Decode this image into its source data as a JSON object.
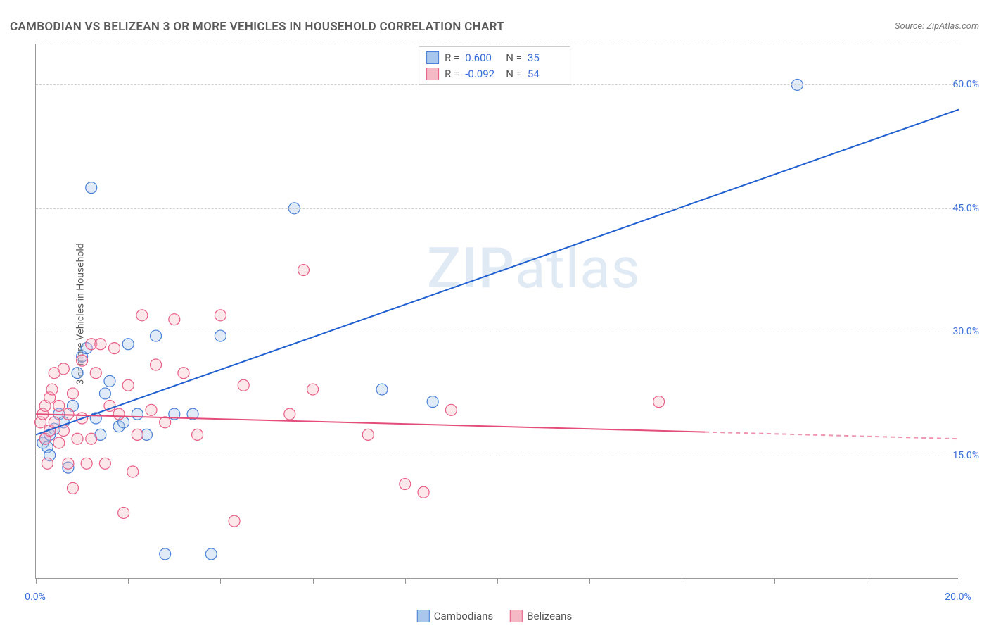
{
  "title": "CAMBODIAN VS BELIZEAN 3 OR MORE VEHICLES IN HOUSEHOLD CORRELATION CHART",
  "source_label": "Source:",
  "source_value": "ZipAtlas.com",
  "ylabel": "3 or more Vehicles in Household",
  "watermark": "ZIPatlas",
  "chart": {
    "type": "scatter-correlation",
    "xlim": [
      0.0,
      20.0
    ],
    "ylim": [
      0.0,
      65.0
    ],
    "x_tick_step": 2.0,
    "x_tick_labels_shown": [
      0.0,
      20.0
    ],
    "y_grid_values": [
      15.0,
      30.0,
      45.0,
      60.0
    ],
    "y_tick_labels": [
      "15.0%",
      "30.0%",
      "45.0%",
      "60.0%"
    ],
    "x_tick_labels": [
      "0.0%",
      "20.0%"
    ],
    "background_color": "#ffffff",
    "grid_color": "#d0d0d0",
    "axis_color": "#999999",
    "label_color": "#5a5a5a",
    "tick_label_color": "#3a6fd8",
    "marker_radius": 8,
    "marker_stroke_width": 1.2,
    "marker_fill_opacity": 0.35,
    "line_width": 2,
    "series": [
      {
        "name": "Cambodians",
        "fill": "#a9c6ec",
        "stroke": "#4a80d6",
        "line_color": "#1f5fd0",
        "R": "0.600",
        "N": "35",
        "trend": {
          "x1": 0.0,
          "y1": 17.5,
          "x2": 20.0,
          "y2": 57.0,
          "extrapolate_from_x": null
        },
        "points": [
          [
            0.15,
            16.5
          ],
          [
            0.2,
            17.0
          ],
          [
            0.25,
            16.0
          ],
          [
            0.3,
            17.5
          ],
          [
            0.3,
            15.0
          ],
          [
            0.4,
            18.2
          ],
          [
            0.5,
            20.0
          ],
          [
            0.6,
            19.0
          ],
          [
            0.7,
            13.5
          ],
          [
            0.8,
            21.0
          ],
          [
            0.9,
            25.0
          ],
          [
            1.0,
            27.0
          ],
          [
            1.1,
            28.0
          ],
          [
            1.2,
            47.5
          ],
          [
            1.3,
            19.5
          ],
          [
            1.4,
            17.5
          ],
          [
            1.5,
            22.5
          ],
          [
            1.6,
            24.0
          ],
          [
            1.8,
            18.5
          ],
          [
            1.9,
            19.0
          ],
          [
            2.0,
            28.5
          ],
          [
            2.2,
            20.0
          ],
          [
            2.4,
            17.5
          ],
          [
            2.6,
            29.5
          ],
          [
            2.8,
            3.0
          ],
          [
            3.0,
            20.0
          ],
          [
            3.4,
            20.0
          ],
          [
            3.8,
            3.0
          ],
          [
            4.0,
            29.5
          ],
          [
            5.6,
            45.0
          ],
          [
            7.5,
            23.0
          ],
          [
            8.6,
            21.5
          ],
          [
            16.5,
            60.0
          ]
        ]
      },
      {
        "name": "Belizeans",
        "fill": "#f5b9c6",
        "stroke": "#e85f87",
        "line_color": "#e44d79",
        "R": "-0.092",
        "N": "54",
        "trend": {
          "x1": 0.0,
          "y1": 20.0,
          "x2": 20.0,
          "y2": 17.0,
          "extrapolate_from_x": 14.5
        },
        "points": [
          [
            0.1,
            19.0
          ],
          [
            0.15,
            20.0
          ],
          [
            0.2,
            17.0
          ],
          [
            0.2,
            21.0
          ],
          [
            0.25,
            14.0
          ],
          [
            0.3,
            18.0
          ],
          [
            0.3,
            22.0
          ],
          [
            0.35,
            23.0
          ],
          [
            0.4,
            19.0
          ],
          [
            0.4,
            25.0
          ],
          [
            0.5,
            16.5
          ],
          [
            0.5,
            21.0
          ],
          [
            0.6,
            25.5
          ],
          [
            0.6,
            18.0
          ],
          [
            0.7,
            14.0
          ],
          [
            0.7,
            20.0
          ],
          [
            0.8,
            22.5
          ],
          [
            0.8,
            11.0
          ],
          [
            0.9,
            17.0
          ],
          [
            1.0,
            26.5
          ],
          [
            1.0,
            19.5
          ],
          [
            1.1,
            14.0
          ],
          [
            1.2,
            28.5
          ],
          [
            1.2,
            17.0
          ],
          [
            1.3,
            25.0
          ],
          [
            1.4,
            28.5
          ],
          [
            1.5,
            14.0
          ],
          [
            1.6,
            21.0
          ],
          [
            1.7,
            28.0
          ],
          [
            1.8,
            20.0
          ],
          [
            1.9,
            8.0
          ],
          [
            2.0,
            23.5
          ],
          [
            2.1,
            13.0
          ],
          [
            2.2,
            17.5
          ],
          [
            2.3,
            32.0
          ],
          [
            2.5,
            20.5
          ],
          [
            2.6,
            26.0
          ],
          [
            2.8,
            19.0
          ],
          [
            3.0,
            31.5
          ],
          [
            3.2,
            25.0
          ],
          [
            3.5,
            17.5
          ],
          [
            4.0,
            32.0
          ],
          [
            4.3,
            7.0
          ],
          [
            4.5,
            23.5
          ],
          [
            5.5,
            20.0
          ],
          [
            5.8,
            37.5
          ],
          [
            6.0,
            23.0
          ],
          [
            7.2,
            17.5
          ],
          [
            8.0,
            11.5
          ],
          [
            8.4,
            10.5
          ],
          [
            9.0,
            20.5
          ],
          [
            13.5,
            21.5
          ]
        ]
      }
    ]
  },
  "stat_legend": {
    "r_label": "R =",
    "n_label": "N ="
  },
  "series_legend": {
    "a": "Cambodians",
    "b": "Belizeans"
  }
}
